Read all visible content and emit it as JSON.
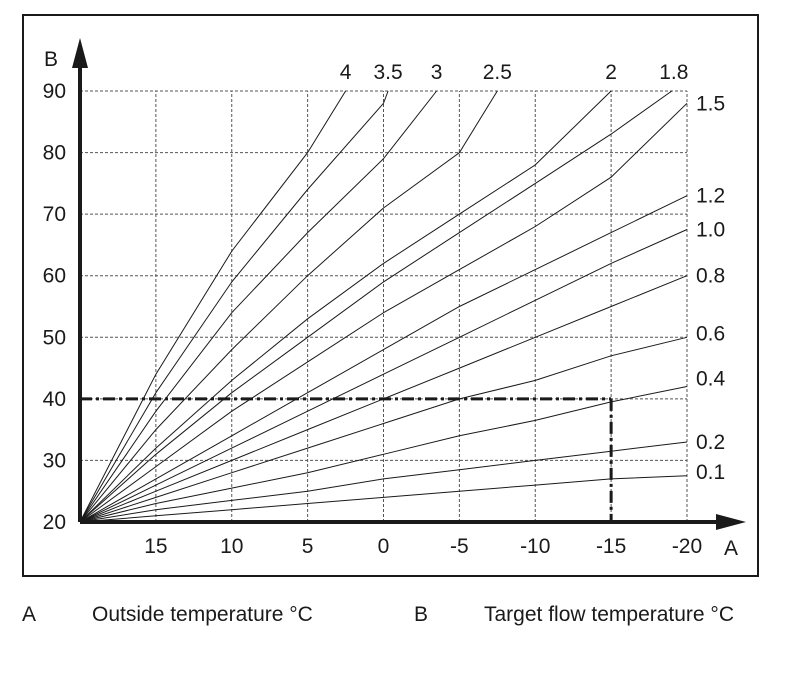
{
  "chart_data": {
    "type": "line",
    "title": "",
    "x_axis": {
      "letter": "A",
      "ticks": [
        15,
        10,
        5,
        0,
        -5,
        -10,
        -15,
        -20
      ],
      "tick_labels": [
        "15",
        "10",
        "5",
        "0",
        "-5",
        "-10",
        "-15",
        "-20"
      ],
      "range": [
        20,
        -20
      ],
      "reversed": true
    },
    "y_axis": {
      "letter": "B",
      "ticks": [
        20,
        30,
        40,
        50,
        60,
        70,
        80,
        90
      ],
      "tick_labels": [
        "20",
        "30",
        "40",
        "50",
        "60",
        "70",
        "80",
        "90"
      ],
      "range": [
        20,
        90
      ]
    },
    "grid": true,
    "curve_origin": {
      "x": 20,
      "y": 20
    },
    "series": [
      {
        "name": "4",
        "points": [
          [
            20,
            20
          ],
          [
            15,
            44
          ],
          [
            10,
            64
          ],
          [
            5,
            80
          ],
          [
            2.5,
            90
          ]
        ]
      },
      {
        "name": "3.5",
        "points": [
          [
            20,
            20
          ],
          [
            15,
            41
          ],
          [
            10,
            59
          ],
          [
            5,
            74
          ],
          [
            0,
            88
          ],
          [
            -0.3,
            90
          ]
        ]
      },
      {
        "name": "3",
        "points": [
          [
            20,
            20
          ],
          [
            15,
            38
          ],
          [
            10,
            54
          ],
          [
            5,
            67
          ],
          [
            0,
            79
          ],
          [
            -3.5,
            90
          ]
        ]
      },
      {
        "name": "2.5",
        "points": [
          [
            20,
            20
          ],
          [
            15,
            35
          ],
          [
            10,
            48
          ],
          [
            5,
            60
          ],
          [
            0,
            71
          ],
          [
            -5,
            80
          ],
          [
            -7.5,
            90
          ]
        ]
      },
      {
        "name": "2",
        "points": [
          [
            20,
            20
          ],
          [
            15,
            32
          ],
          [
            10,
            43
          ],
          [
            5,
            53
          ],
          [
            0,
            62
          ],
          [
            -5,
            70
          ],
          [
            -10,
            78
          ],
          [
            -15,
            90
          ]
        ]
      },
      {
        "name": "1.8",
        "points": [
          [
            20,
            20
          ],
          [
            15,
            31
          ],
          [
            10,
            41
          ],
          [
            5,
            50
          ],
          [
            0,
            59
          ],
          [
            -5,
            67
          ],
          [
            -10,
            75
          ],
          [
            -15,
            83
          ],
          [
            -19,
            90
          ]
        ]
      },
      {
        "name": "1.5",
        "points": [
          [
            20,
            20
          ],
          [
            15,
            29
          ],
          [
            10,
            38
          ],
          [
            5,
            46
          ],
          [
            0,
            54
          ],
          [
            -5,
            61
          ],
          [
            -10,
            68
          ],
          [
            -15,
            76
          ],
          [
            -20,
            88
          ]
        ]
      },
      {
        "name": "1.2",
        "points": [
          [
            20,
            20
          ],
          [
            15,
            27
          ],
          [
            10,
            34
          ],
          [
            5,
            41
          ],
          [
            0,
            48
          ],
          [
            -5,
            55
          ],
          [
            -10,
            61
          ],
          [
            -15,
            67
          ],
          [
            -20,
            73
          ]
        ]
      },
      {
        "name": "1.0",
        "points": [
          [
            20,
            20
          ],
          [
            15,
            26
          ],
          [
            10,
            32
          ],
          [
            5,
            38
          ],
          [
            0,
            44
          ],
          [
            -5,
            50
          ],
          [
            -10,
            56
          ],
          [
            -15,
            62
          ],
          [
            -20,
            67.5
          ]
        ]
      },
      {
        "name": "0.8",
        "points": [
          [
            20,
            20
          ],
          [
            15,
            25
          ],
          [
            10,
            30
          ],
          [
            5,
            35
          ],
          [
            0,
            40
          ],
          [
            -5,
            45
          ],
          [
            -10,
            50
          ],
          [
            -15,
            55
          ],
          [
            -20,
            60
          ]
        ]
      },
      {
        "name": "0.6",
        "points": [
          [
            20,
            20
          ],
          [
            15,
            24
          ],
          [
            10,
            28
          ],
          [
            5,
            32
          ],
          [
            0,
            36
          ],
          [
            -5,
            40
          ],
          [
            -10,
            43
          ],
          [
            -15,
            47
          ],
          [
            -20,
            50
          ]
        ]
      },
      {
        "name": "0.4",
        "points": [
          [
            20,
            20
          ],
          [
            15,
            23
          ],
          [
            10,
            25.5
          ],
          [
            5,
            28
          ],
          [
            0,
            31
          ],
          [
            -5,
            34
          ],
          [
            -10,
            36.5
          ],
          [
            -15,
            39.5
          ],
          [
            -20,
            42
          ]
        ]
      },
      {
        "name": "0.2",
        "points": [
          [
            20,
            20
          ],
          [
            15,
            22
          ],
          [
            10,
            23.5
          ],
          [
            5,
            25
          ],
          [
            0,
            27
          ],
          [
            -5,
            28.5
          ],
          [
            -10,
            30
          ],
          [
            -15,
            31.5
          ],
          [
            -20,
            33
          ]
        ]
      },
      {
        "name": "0.1",
        "points": [
          [
            20,
            20
          ],
          [
            15,
            21
          ],
          [
            10,
            22
          ],
          [
            5,
            23
          ],
          [
            0,
            24
          ],
          [
            -5,
            25
          ],
          [
            -10,
            26
          ],
          [
            -15,
            27
          ],
          [
            -20,
            27.5
          ]
        ]
      }
    ],
    "example_lines": [
      {
        "from": [
          20,
          40
        ],
        "to": [
          -15,
          40
        ]
      },
      {
        "from": [
          -15,
          40
        ],
        "to": [
          -15,
          20
        ]
      }
    ]
  },
  "legend": [
    {
      "key": "A",
      "text": "Outside temperature °C"
    },
    {
      "key": "B",
      "text": "Target flow temperature °C"
    }
  ]
}
